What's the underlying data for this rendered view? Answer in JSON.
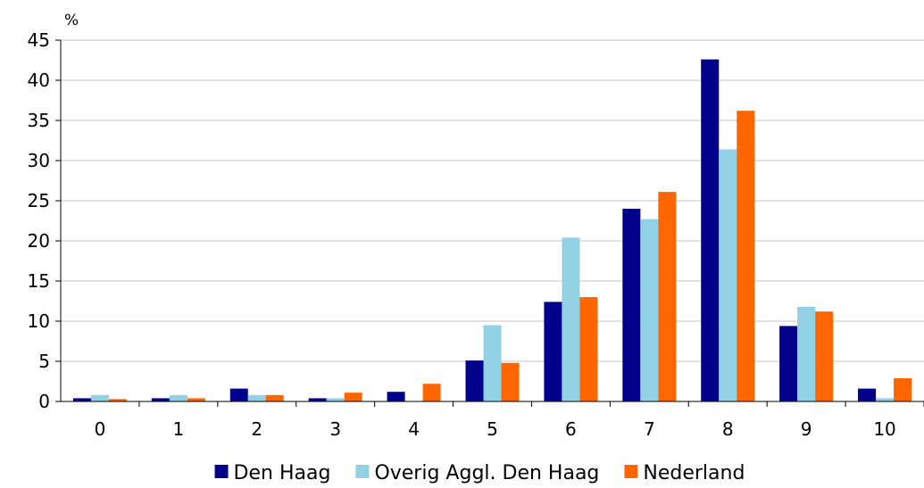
{
  "chart_data": {
    "type": "bar",
    "y_unit": "%",
    "categories": [
      "0",
      "1",
      "2",
      "3",
      "4",
      "5",
      "6",
      "7",
      "8",
      "9",
      "10"
    ],
    "series": [
      {
        "name": "Den Haag",
        "color": "#00008b",
        "values": [
          0.4,
          0.4,
          1.6,
          0.4,
          1.2,
          5.1,
          12.4,
          24.0,
          42.6,
          9.4,
          1.6
        ]
      },
      {
        "name": "Overig Aggl. Den Haag",
        "color": "#92d0e4",
        "values": [
          0.8,
          0.8,
          0.8,
          0.4,
          0.0,
          9.5,
          20.4,
          22.7,
          31.4,
          11.8,
          0.4
        ]
      },
      {
        "name": "Nederland",
        "color": "#ff6600",
        "values": [
          0.3,
          0.4,
          0.8,
          1.1,
          2.2,
          4.8,
          13.0,
          26.1,
          36.2,
          11.2,
          2.9
        ]
      }
    ],
    "ylim": [
      0,
      45
    ],
    "yticks": [
      0,
      5,
      10,
      15,
      20,
      25,
      30,
      35,
      40,
      45
    ],
    "grid": true,
    "legend_position": "bottom"
  }
}
